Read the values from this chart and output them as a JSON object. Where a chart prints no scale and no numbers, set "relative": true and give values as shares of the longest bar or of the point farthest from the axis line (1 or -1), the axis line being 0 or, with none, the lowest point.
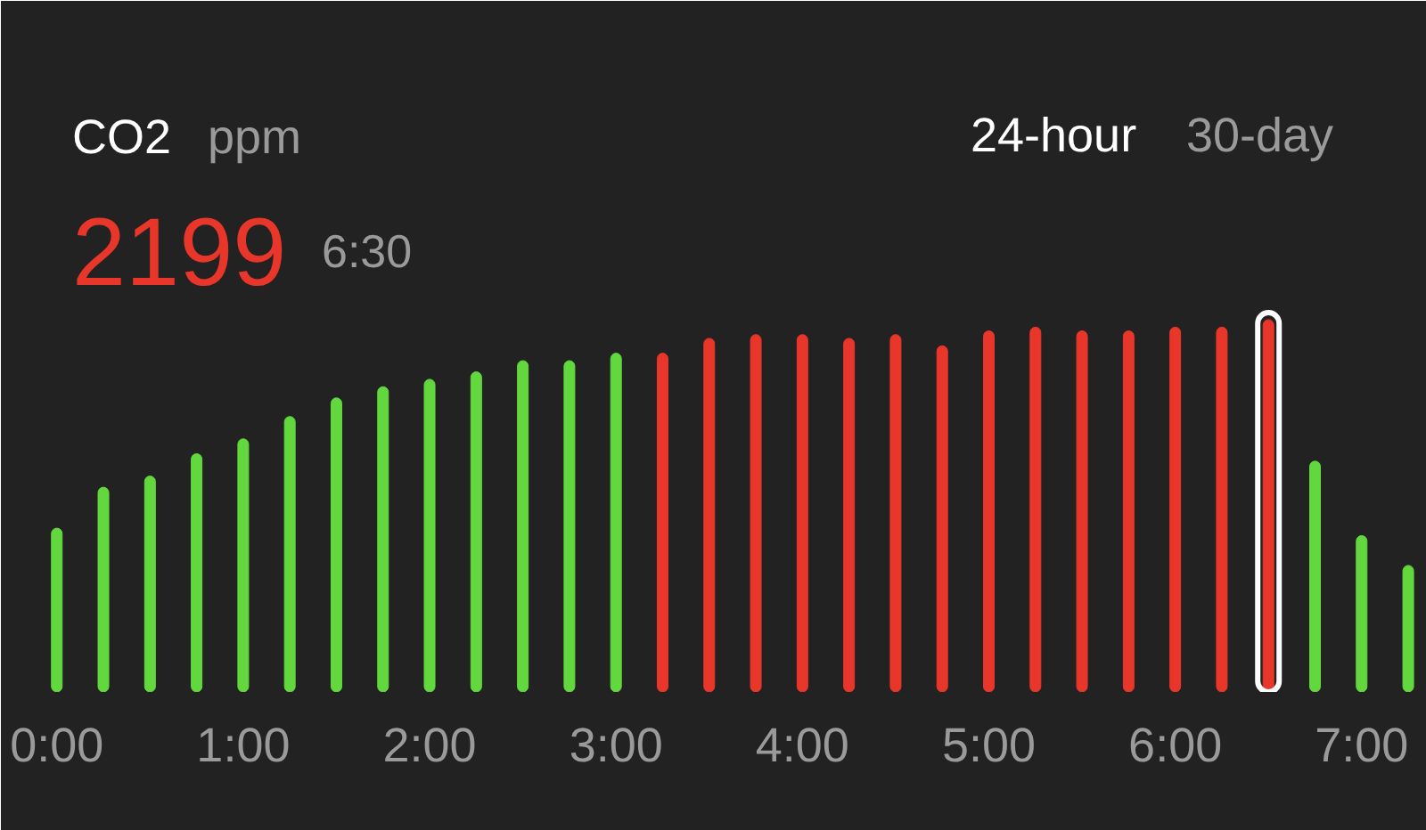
{
  "chart_data": {
    "type": "bar",
    "title": "CO2",
    "subtitle": "ppm",
    "relative": true,
    "x": [
      0,
      0.25,
      0.5,
      0.75,
      1,
      1.25,
      1.5,
      1.75,
      2,
      2.25,
      2.5,
      2.75,
      3,
      3.25,
      3.5,
      3.75,
      4,
      4.25,
      4.5,
      4.75,
      5,
      5.25,
      5.5,
      5.75,
      6,
      6.25,
      6.5,
      6.75,
      7,
      7.25
    ],
    "values": [
      0.44,
      0.55,
      0.58,
      0.64,
      0.68,
      0.74,
      0.79,
      0.82,
      0.84,
      0.86,
      0.89,
      0.89,
      0.91,
      0.91,
      0.95,
      0.96,
      0.96,
      0.95,
      0.96,
      0.93,
      0.97,
      0.98,
      0.97,
      0.97,
      0.98,
      0.98,
      1,
      0.62,
      0.42,
      0.34
    ],
    "colors": [
      "#62d83e",
      "#62d83e",
      "#62d83e",
      "#62d83e",
      "#62d83e",
      "#62d83e",
      "#62d83e",
      "#62d83e",
      "#62d83e",
      "#62d83e",
      "#62d83e",
      "#62d83e",
      "#62d83e",
      "#e8362a",
      "#e8362a",
      "#e8362a",
      "#e8362a",
      "#e8362a",
      "#e8362a",
      "#e8362a",
      "#e8362a",
      "#e8362a",
      "#e8362a",
      "#e8362a",
      "#e8362a",
      "#e8362a",
      "#e8362a",
      "#62d83e",
      "#62d83e",
      "#62d83e"
    ],
    "xlim": [
      -0.3,
      7.35
    ],
    "xticks": [
      {
        "value": 0,
        "label": "0:00"
      },
      {
        "value": 1,
        "label": "1:00"
      },
      {
        "value": 2,
        "label": "2:00"
      },
      {
        "value": 3,
        "label": "3:00"
      },
      {
        "value": 4,
        "label": "4:00"
      },
      {
        "value": 5,
        "label": "5:00"
      },
      {
        "value": 6,
        "label": "6:00"
      },
      {
        "value": 7,
        "label": "7:00"
      }
    ],
    "annotations": [
      "2199",
      "6:30",
      "24-hour",
      "30-day"
    ]
  }
}
